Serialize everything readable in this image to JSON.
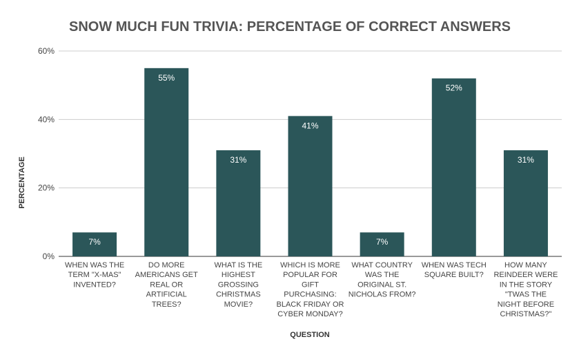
{
  "chart_data": {
    "type": "bar",
    "title": "SNOW MUCH FUN TRIVIA: PERCENTAGE OF CORRECT ANSWERS",
    "xlabel": "QUESTION",
    "ylabel": "PERCENTAGE",
    "ylim": [
      0,
      60
    ],
    "yticks": [
      0,
      20,
      40,
      60
    ],
    "ytick_labels": [
      "0%",
      "20%",
      "40%",
      "60%"
    ],
    "grid": true,
    "legend": "none",
    "bar_color": "#2b5659",
    "categories": [
      "WHEN WAS THE TERM \"X-MAS\" INVENTED?",
      "DO MORE AMERICANS GET REAL OR ARTIFICIAL TREES?",
      "WHAT IS THE HIGHEST GROSSING CHRISTMAS MOVIE?",
      "WHICH IS MORE POPULAR FOR GIFT PURCHASING: BLACK FRIDAY OR CYBER MONDAY?",
      "WHAT COUNTRY WAS THE ORIGINAL ST. NICHOLAS FROM?",
      "WHEN WAS TECH SQUARE BUILT?",
      "HOW MANY REINDEER WERE IN THE STORY \"TWAS THE NIGHT BEFORE CHRISTMAS?\""
    ],
    "category_lines": [
      [
        "WHEN WAS THE",
        "TERM \"X-MAS\"",
        "INVENTED?"
      ],
      [
        "DO MORE",
        "AMERICANS GET",
        "REAL OR",
        "ARTIFICIAL",
        "TREES?"
      ],
      [
        "WHAT IS THE",
        "HIGHEST",
        "GROSSING",
        "CHRISTMAS",
        "MOVIE?"
      ],
      [
        "WHICH IS MORE",
        "POPULAR FOR",
        "GIFT",
        "PURCHASING:",
        "BLACK FRIDAY OR",
        "CYBER MONDAY?"
      ],
      [
        "WHAT COUNTRY",
        "WAS THE",
        "ORIGINAL ST.",
        "NICHOLAS FROM?"
      ],
      [
        "WHEN WAS TECH",
        "SQUARE BUILT?"
      ],
      [
        "HOW MANY",
        "REINDEER WERE",
        "IN THE STORY",
        "\"TWAS THE",
        "NIGHT BEFORE",
        "CHRISTMAS?\""
      ]
    ],
    "values": [
      7,
      55,
      31,
      41,
      7,
      52,
      31
    ],
    "data_labels": [
      "7%",
      "55%",
      "31%",
      "41%",
      "7%",
      "52%",
      "31%"
    ]
  }
}
